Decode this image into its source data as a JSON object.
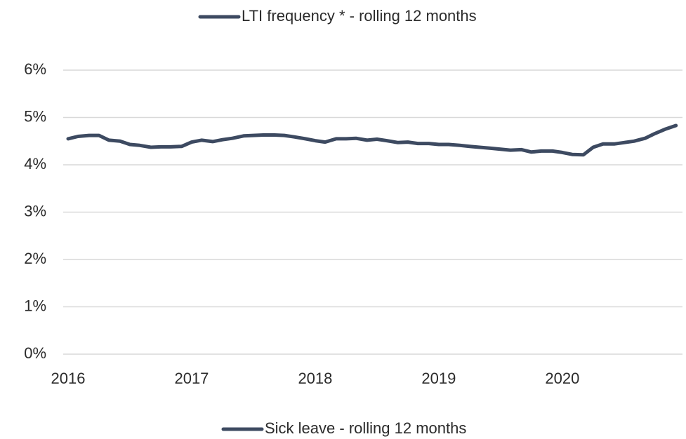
{
  "chart_data": {
    "type": "line",
    "x": [
      2016,
      2016.08,
      2016.17,
      2016.25,
      2016.33,
      2016.42,
      2016.5,
      2016.58,
      2016.67,
      2016.75,
      2016.83,
      2016.92,
      2017,
      2017.08,
      2017.17,
      2017.25,
      2017.33,
      2017.42,
      2017.5,
      2017.58,
      2017.67,
      2017.75,
      2017.83,
      2017.92,
      2018,
      2018.08,
      2018.17,
      2018.25,
      2018.33,
      2018.42,
      2018.5,
      2018.58,
      2018.67,
      2018.75,
      2018.83,
      2018.92,
      2019,
      2019.08,
      2019.17,
      2019.25,
      2019.33,
      2019.42,
      2019.5,
      2019.58,
      2019.67,
      2019.75,
      2019.83,
      2019.92,
      2020,
      2020.08,
      2020.17,
      2020.25,
      2020.33,
      2020.42,
      2020.5,
      2020.58,
      2020.67,
      2020.75,
      2020.83,
      2020.92
    ],
    "series": [
      {
        "name": "LTI frequency * - rolling 12 months",
        "color": "#3d4a61",
        "values": [
          null,
          null,
          null,
          null,
          null,
          null,
          null,
          null,
          null,
          null,
          null,
          null,
          null,
          null,
          null,
          null,
          null,
          null,
          null,
          null,
          null,
          null,
          null,
          null,
          null,
          null,
          null,
          null,
          null,
          null,
          null,
          null,
          null,
          null,
          null,
          null,
          null,
          null,
          null,
          null,
          null,
          null,
          null,
          null,
          null,
          null,
          null,
          null,
          null,
          null,
          null,
          null,
          null,
          null,
          null,
          null,
          null,
          null,
          null,
          null
        ]
      },
      {
        "name": "Sick leave - rolling 12 months",
        "color": "#3d4a61",
        "values": [
          4.55,
          4.6,
          4.62,
          4.62,
          4.52,
          4.5,
          4.43,
          4.41,
          4.37,
          4.38,
          4.38,
          4.39,
          4.48,
          4.52,
          4.49,
          4.53,
          4.56,
          4.61,
          4.62,
          4.63,
          4.63,
          4.62,
          4.59,
          4.55,
          4.51,
          4.48,
          4.55,
          4.55,
          4.56,
          4.52,
          4.54,
          4.51,
          4.47,
          4.48,
          4.45,
          4.45,
          4.43,
          4.43,
          4.41,
          4.39,
          4.37,
          4.35,
          4.33,
          4.31,
          4.32,
          4.27,
          4.29,
          4.29,
          4.26,
          4.22,
          4.21,
          4.37,
          4.44,
          4.44,
          4.47,
          4.5,
          4.56,
          4.66,
          4.75,
          4.83
        ]
      }
    ],
    "xlim": [
      2016,
      2020.95
    ],
    "xticks": [
      2016,
      2017,
      2018,
      2019,
      2020
    ],
    "ylim": [
      0,
      6
    ],
    "yticks": [
      {
        "value": 0,
        "label": "0%"
      },
      {
        "value": 1,
        "label": "1%"
      },
      {
        "value": 2,
        "label": "2%"
      },
      {
        "value": 3,
        "label": "3%"
      },
      {
        "value": 4,
        "label": "4%"
      },
      {
        "value": 5,
        "label": "5%"
      },
      {
        "value": 6,
        "label": "6%"
      }
    ],
    "grid": true
  }
}
